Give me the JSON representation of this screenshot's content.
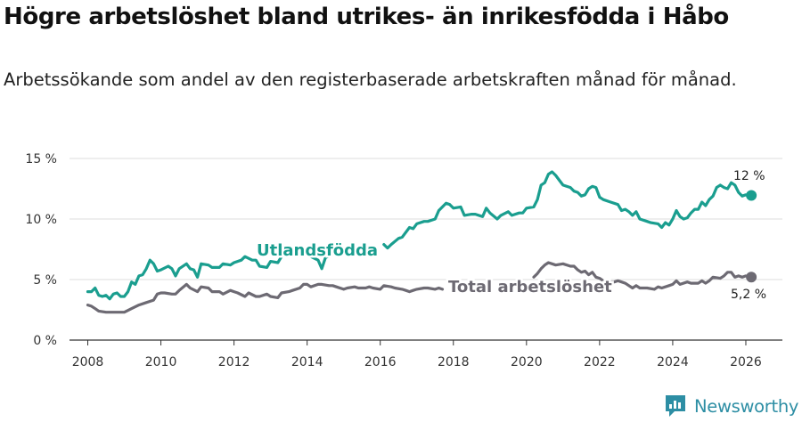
{
  "title": "Högre arbetslöshet bland utrikes- än inrikesfödda i Håbo",
  "subtitle": "Arbetssökande som andel av den registerbaserade arbetskraften månad för månad.",
  "brand": {
    "name": "Newsworthy",
    "color": "#2d8ea4"
  },
  "chart_data": {
    "type": "line",
    "title": "Högre arbetslöshet bland utrikes- än inrikesfödda i Håbo",
    "xlabel": "",
    "ylabel": "",
    "xlim": [
      2007.5,
      2027.0
    ],
    "ylim": [
      0,
      15
    ],
    "grid": true,
    "y_ticks": [
      0,
      5,
      10,
      15
    ],
    "y_tick_labels": [
      "0 %",
      "5 %",
      "10 %",
      "15 %"
    ],
    "x_ticks": [
      2008,
      2010,
      2012,
      2014,
      2016,
      2018,
      2020,
      2022,
      2024,
      2026
    ],
    "x_tick_labels": [
      "2008",
      "2010",
      "2012",
      "2014",
      "2016",
      "2018",
      "2020",
      "2022",
      "2024",
      "2026"
    ],
    "series": [
      {
        "name": "Utlandsfödda",
        "color": "#1a9e8f",
        "end_label": "12 %",
        "points": [
          [
            2008.0,
            4.0
          ],
          [
            2008.1,
            4.0
          ],
          [
            2008.2,
            4.3
          ],
          [
            2008.3,
            3.7
          ],
          [
            2008.4,
            3.6
          ],
          [
            2008.5,
            3.7
          ],
          [
            2008.6,
            3.4
          ],
          [
            2008.7,
            3.8
          ],
          [
            2008.8,
            3.9
          ],
          [
            2008.9,
            3.6
          ],
          [
            2009.0,
            3.6
          ],
          [
            2009.1,
            4.0
          ],
          [
            2009.2,
            4.8
          ],
          [
            2009.3,
            4.6
          ],
          [
            2009.4,
            5.3
          ],
          [
            2009.5,
            5.4
          ],
          [
            2009.6,
            5.9
          ],
          [
            2009.7,
            6.6
          ],
          [
            2009.8,
            6.3
          ],
          [
            2009.9,
            5.7
          ],
          [
            2010.0,
            5.8
          ],
          [
            2010.2,
            6.1
          ],
          [
            2010.3,
            5.9
          ],
          [
            2010.4,
            5.3
          ],
          [
            2010.5,
            5.9
          ],
          [
            2010.7,
            6.3
          ],
          [
            2010.8,
            5.9
          ],
          [
            2010.9,
            5.8
          ],
          [
            2011.0,
            5.2
          ],
          [
            2011.1,
            6.3
          ],
          [
            2011.3,
            6.2
          ],
          [
            2011.4,
            6.0
          ],
          [
            2011.6,
            6.0
          ],
          [
            2011.7,
            6.3
          ],
          [
            2011.9,
            6.2
          ],
          [
            2012.0,
            6.4
          ],
          [
            2012.2,
            6.6
          ],
          [
            2012.3,
            6.9
          ],
          [
            2012.5,
            6.6
          ],
          [
            2012.6,
            6.6
          ],
          [
            2012.7,
            6.1
          ],
          [
            2012.9,
            6.0
          ],
          [
            2013.0,
            6.5
          ],
          [
            2013.2,
            6.4
          ],
          [
            2013.3,
            6.9
          ],
          [
            2013.5,
            7.1
          ],
          null,
          [
            2014.1,
            6.9
          ],
          [
            2014.3,
            6.6
          ],
          [
            2014.4,
            5.9
          ],
          [
            2014.5,
            6.8
          ],
          [
            2014.7,
            7.1
          ],
          null,
          [
            2016.1,
            7.9
          ],
          [
            2016.2,
            7.6
          ],
          [
            2016.3,
            7.9
          ],
          [
            2016.5,
            8.4
          ],
          [
            2016.6,
            8.5
          ],
          [
            2016.8,
            9.3
          ],
          [
            2016.9,
            9.2
          ],
          [
            2017.0,
            9.6
          ],
          [
            2017.2,
            9.8
          ],
          [
            2017.3,
            9.8
          ],
          [
            2017.5,
            10.0
          ],
          [
            2017.6,
            10.7
          ],
          [
            2017.8,
            11.3
          ],
          [
            2017.9,
            11.2
          ],
          [
            2018.0,
            10.9
          ],
          [
            2018.2,
            11.0
          ],
          [
            2018.3,
            10.3
          ],
          [
            2018.5,
            10.4
          ],
          [
            2018.6,
            10.4
          ],
          [
            2018.8,
            10.2
          ],
          [
            2018.9,
            10.9
          ],
          [
            2019.0,
            10.5
          ],
          [
            2019.2,
            10.0
          ],
          [
            2019.3,
            10.3
          ],
          [
            2019.5,
            10.6
          ],
          [
            2019.6,
            10.3
          ],
          [
            2019.8,
            10.5
          ],
          [
            2019.9,
            10.5
          ],
          [
            2020.0,
            10.9
          ],
          [
            2020.2,
            11.0
          ],
          [
            2020.3,
            11.6
          ],
          [
            2020.4,
            12.8
          ],
          [
            2020.5,
            13.0
          ],
          [
            2020.6,
            13.7
          ],
          [
            2020.7,
            13.9
          ],
          [
            2020.8,
            13.6
          ],
          [
            2020.9,
            13.2
          ],
          [
            2021.0,
            12.8
          ],
          [
            2021.2,
            12.6
          ],
          [
            2021.3,
            12.3
          ],
          [
            2021.4,
            12.2
          ],
          [
            2021.5,
            11.9
          ],
          [
            2021.6,
            12.0
          ],
          [
            2021.7,
            12.5
          ],
          [
            2021.8,
            12.7
          ],
          [
            2021.9,
            12.6
          ],
          [
            2022.0,
            11.8
          ],
          [
            2022.1,
            11.6
          ],
          [
            2022.3,
            11.4
          ],
          [
            2022.5,
            11.2
          ],
          [
            2022.6,
            10.7
          ],
          [
            2022.7,
            10.8
          ],
          [
            2022.8,
            10.6
          ],
          [
            2022.9,
            10.3
          ],
          [
            2023.0,
            10.6
          ],
          [
            2023.1,
            10.0
          ],
          [
            2023.3,
            9.8
          ],
          [
            2023.4,
            9.7
          ],
          [
            2023.6,
            9.6
          ],
          [
            2023.7,
            9.3
          ],
          [
            2023.8,
            9.7
          ],
          [
            2023.9,
            9.5
          ],
          [
            2024.0,
            10.0
          ],
          [
            2024.1,
            10.7
          ],
          [
            2024.2,
            10.2
          ],
          [
            2024.3,
            10.0
          ],
          [
            2024.4,
            10.1
          ],
          [
            2024.5,
            10.5
          ],
          [
            2024.6,
            10.8
          ],
          [
            2024.7,
            10.8
          ],
          [
            2024.8,
            11.4
          ],
          [
            2024.9,
            11.1
          ],
          [
            2025.0,
            11.6
          ],
          [
            2025.1,
            11.9
          ],
          [
            2025.2,
            12.6
          ],
          [
            2025.3,
            12.8
          ],
          [
            2025.4,
            12.6
          ],
          [
            2025.5,
            12.5
          ],
          [
            2025.6,
            13.0
          ],
          [
            2025.7,
            12.8
          ],
          [
            2025.8,
            12.2
          ],
          [
            2025.9,
            11.9
          ],
          [
            2026.0,
            12.0
          ],
          [
            2026.1,
            11.9
          ],
          [
            2026.15,
            11.95
          ]
        ]
      },
      {
        "name": "Total arbetslöshet",
        "color": "#6d6a73",
        "end_label": "5,2 %",
        "points": [
          [
            2008.0,
            2.9
          ],
          [
            2008.1,
            2.8
          ],
          [
            2008.2,
            2.6
          ],
          [
            2008.3,
            2.4
          ],
          [
            2008.5,
            2.3
          ],
          [
            2008.7,
            2.3
          ],
          [
            2008.9,
            2.3
          ],
          [
            2009.0,
            2.3
          ],
          [
            2009.2,
            2.6
          ],
          [
            2009.4,
            2.9
          ],
          [
            2009.6,
            3.1
          ],
          [
            2009.8,
            3.3
          ],
          [
            2009.9,
            3.8
          ],
          [
            2010.0,
            3.9
          ],
          [
            2010.1,
            3.9
          ],
          [
            2010.3,
            3.8
          ],
          [
            2010.4,
            3.8
          ],
          [
            2010.5,
            4.1
          ],
          [
            2010.7,
            4.6
          ],
          [
            2010.8,
            4.3
          ],
          [
            2011.0,
            4.0
          ],
          [
            2011.1,
            4.4
          ],
          [
            2011.3,
            4.3
          ],
          [
            2011.4,
            4.0
          ],
          [
            2011.6,
            4.0
          ],
          [
            2011.7,
            3.8
          ],
          [
            2011.9,
            4.1
          ],
          [
            2012.0,
            4.0
          ],
          [
            2012.1,
            3.9
          ],
          [
            2012.3,
            3.6
          ],
          [
            2012.4,
            3.9
          ],
          [
            2012.6,
            3.6
          ],
          [
            2012.7,
            3.6
          ],
          [
            2012.9,
            3.8
          ],
          [
            2013.0,
            3.6
          ],
          [
            2013.2,
            3.5
          ],
          [
            2013.3,
            3.9
          ],
          [
            2013.5,
            4.0
          ],
          [
            2013.6,
            4.1
          ],
          [
            2013.8,
            4.3
          ],
          [
            2013.9,
            4.6
          ],
          [
            2014.0,
            4.6
          ],
          [
            2014.1,
            4.4
          ],
          [
            2014.3,
            4.6
          ],
          [
            2014.4,
            4.6
          ],
          [
            2014.6,
            4.5
          ],
          [
            2014.7,
            4.5
          ],
          [
            2014.8,
            4.4
          ],
          [
            2015.0,
            4.2
          ],
          [
            2015.1,
            4.3
          ],
          [
            2015.3,
            4.4
          ],
          [
            2015.4,
            4.3
          ],
          [
            2015.6,
            4.3
          ],
          [
            2015.7,
            4.4
          ],
          [
            2015.8,
            4.3
          ],
          [
            2016.0,
            4.2
          ],
          [
            2016.1,
            4.5
          ],
          [
            2016.3,
            4.4
          ],
          [
            2016.4,
            4.3
          ],
          [
            2016.6,
            4.2
          ],
          [
            2016.7,
            4.1
          ],
          [
            2016.8,
            4.0
          ],
          [
            2016.9,
            4.1
          ],
          [
            2017.0,
            4.2
          ],
          [
            2017.2,
            4.3
          ],
          [
            2017.3,
            4.3
          ],
          [
            2017.5,
            4.2
          ],
          [
            2017.6,
            4.3
          ],
          [
            2017.7,
            4.2
          ],
          null,
          [
            2020.2,
            5.2
          ],
          [
            2020.3,
            5.5
          ],
          [
            2020.4,
            5.9
          ],
          [
            2020.5,
            6.2
          ],
          [
            2020.6,
            6.4
          ],
          [
            2020.7,
            6.3
          ],
          [
            2020.8,
            6.2
          ],
          [
            2021.0,
            6.3
          ],
          [
            2021.2,
            6.1
          ],
          [
            2021.3,
            6.1
          ],
          [
            2021.4,
            5.8
          ],
          [
            2021.5,
            5.6
          ],
          [
            2021.6,
            5.7
          ],
          [
            2021.7,
            5.4
          ],
          [
            2021.8,
            5.6
          ],
          [
            2021.9,
            5.2
          ],
          [
            2022.0,
            5.1
          ],
          [
            2022.1,
            4.9
          ],
          [
            2022.2,
            4.9
          ],
          [
            2022.3,
            4.8
          ],
          [
            2022.4,
            4.8
          ],
          [
            2022.5,
            4.9
          ],
          [
            2022.6,
            4.8
          ],
          [
            2022.7,
            4.7
          ],
          [
            2022.8,
            4.5
          ],
          [
            2022.9,
            4.3
          ],
          [
            2023.0,
            4.5
          ],
          [
            2023.1,
            4.3
          ],
          [
            2023.3,
            4.3
          ],
          [
            2023.5,
            4.2
          ],
          [
            2023.6,
            4.4
          ],
          [
            2023.7,
            4.3
          ],
          [
            2023.9,
            4.5
          ],
          [
            2024.0,
            4.6
          ],
          [
            2024.1,
            4.9
          ],
          [
            2024.2,
            4.6
          ],
          [
            2024.4,
            4.8
          ],
          [
            2024.5,
            4.7
          ],
          [
            2024.7,
            4.7
          ],
          [
            2024.8,
            4.9
          ],
          [
            2024.9,
            4.7
          ],
          [
            2025.0,
            4.9
          ],
          [
            2025.1,
            5.2
          ],
          [
            2025.3,
            5.1
          ],
          [
            2025.4,
            5.3
          ],
          [
            2025.5,
            5.6
          ],
          [
            2025.6,
            5.6
          ],
          [
            2025.7,
            5.2
          ],
          [
            2025.8,
            5.3
          ],
          [
            2025.9,
            5.2
          ],
          [
            2026.0,
            5.3
          ],
          [
            2026.15,
            5.2
          ]
        ]
      }
    ],
    "annotations": [
      {
        "text": "Utlandsfödda",
        "series": "Utlandsfödda",
        "color": "#1a9e8f"
      },
      {
        "text": "Total arbetslöshet",
        "series": "Total arbetslöshet",
        "color": "#6d6a73"
      }
    ]
  }
}
